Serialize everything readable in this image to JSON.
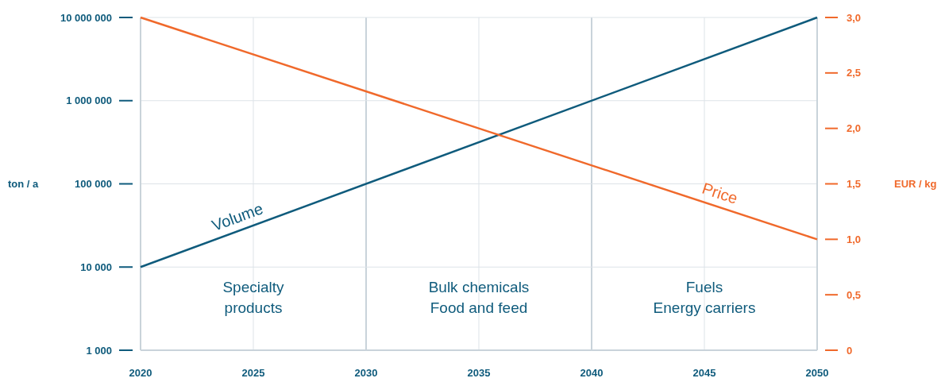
{
  "chart_data": {
    "type": "line",
    "ylabel": "ton / a",
    "y2label": "EUR / kg",
    "log": "y",
    "grid": true,
    "x": [
      2020,
      2050
    ],
    "xlim": [
      2020,
      2050
    ],
    "xticks": [
      2020,
      2025,
      2030,
      2035,
      2040,
      2045,
      2050
    ],
    "ylim": [
      1000,
      10000000
    ],
    "yticks": [
      {
        "value": 1000,
        "label": "1 000"
      },
      {
        "value": 10000,
        "label": "10 000"
      },
      {
        "value": 100000,
        "label": "100 000"
      },
      {
        "value": 1000000,
        "label": "1 000 000"
      },
      {
        "value": 10000000,
        "label": "10 000 000"
      }
    ],
    "y2lim": [
      0,
      3
    ],
    "y2ticks": [
      0,
      {
        "value": 0.5,
        "label": "0,5"
      },
      {
        "value": 1,
        "label": "1,0"
      },
      {
        "value": 1.5,
        "label": "1,5"
      },
      {
        "value": 2,
        "label": "2,0"
      },
      {
        "value": 2.5,
        "label": "2,5"
      },
      {
        "value": 3,
        "label": "3,0"
      }
    ],
    "series": [
      {
        "name": "Volume",
        "color": "#0f5b7c",
        "values": [
          10000,
          10000000
        ]
      },
      {
        "name": "Price",
        "color": "#f0692b",
        "values": [
          3,
          1
        ],
        "axis": "y2"
      }
    ],
    "annotations": [
      "Specialty\nproducts",
      "Bulk chemicals\nFood and feed",
      "Fuels\nEnergy carriers"
    ]
  }
}
